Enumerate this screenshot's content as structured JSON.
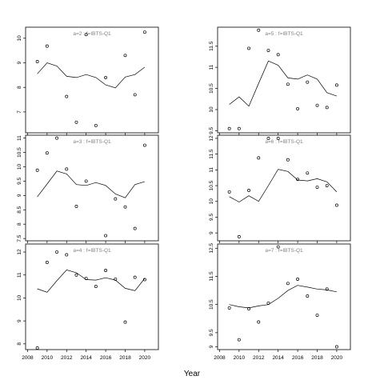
{
  "figure": {
    "xlabel": "Year"
  },
  "chart_data": [
    {
      "type": "scatter",
      "strip_label": "a=2 : f=IBTS-Q1",
      "xlabel": "Year",
      "xlim": [
        2007.8,
        2021.4
      ],
      "xticks": [
        2008,
        2010,
        2012,
        2014,
        2016,
        2018,
        2020
      ],
      "ylim": [
        6.15,
        10.45
      ],
      "yticks": [
        7,
        8,
        9,
        10
      ],
      "points": {
        "x": [
          2009,
          2010,
          2012,
          2013,
          2014,
          2015,
          2016,
          2018,
          2019,
          2020
        ],
        "y": [
          9.05,
          9.68,
          7.63,
          6.58,
          10.15,
          6.45,
          8.4,
          9.3,
          7.7,
          10.25
        ]
      },
      "fit": {
        "x": [
          2009,
          2010,
          2011,
          2012,
          2013,
          2014,
          2015,
          2016,
          2017,
          2018,
          2019,
          2020
        ],
        "y": [
          8.55,
          9.0,
          8.87,
          8.45,
          8.4,
          8.52,
          8.4,
          8.1,
          7.98,
          8.42,
          8.52,
          8.82
        ]
      }
    },
    {
      "type": "scatter",
      "strip_label": "a=3 : f=IBTS-Q1",
      "xlabel": "Year",
      "xlim": [
        2007.8,
        2021.4
      ],
      "xticks": [
        2008,
        2010,
        2012,
        2014,
        2016,
        2018,
        2020
      ],
      "ylim": [
        7.42,
        11.1
      ],
      "yticks": [
        7.5,
        8.0,
        8.5,
        9.0,
        9.5,
        10.0,
        10.5,
        11.0
      ],
      "points": {
        "x": [
          2009,
          2010,
          2011,
          2012,
          2013,
          2014,
          2016,
          2017,
          2018,
          2019,
          2020
        ],
        "y": [
          9.88,
          10.48,
          11.0,
          9.92,
          8.62,
          9.5,
          7.6,
          8.88,
          8.6,
          7.85,
          10.75
        ]
      },
      "fit": {
        "x": [
          2009,
          2010,
          2011,
          2012,
          2013,
          2014,
          2015,
          2016,
          2017,
          2018,
          2019,
          2020
        ],
        "y": [
          8.95,
          9.4,
          9.85,
          9.75,
          9.38,
          9.35,
          9.45,
          9.35,
          9.05,
          8.92,
          9.38,
          9.48
        ]
      }
    },
    {
      "type": "scatter",
      "strip_label": "a=4 : f=IBTS-Q1",
      "xlabel": "Year",
      "xlim": [
        2007.8,
        2021.4
      ],
      "xticks": [
        2008,
        2010,
        2012,
        2014,
        2016,
        2018,
        2020
      ],
      "ylim": [
        7.75,
        12.35
      ],
      "yticks": [
        8,
        9,
        10,
        11,
        12
      ],
      "points": {
        "x": [
          2009,
          2010,
          2011,
          2012,
          2013,
          2014,
          2015,
          2016,
          2017,
          2018,
          2019,
          2020
        ],
        "y": [
          7.82,
          11.55,
          12.0,
          11.88,
          11.0,
          10.85,
          10.5,
          11.2,
          10.82,
          8.95,
          10.9,
          10.8
        ]
      },
      "fit": {
        "x": [
          2009,
          2010,
          2011,
          2012,
          2013,
          2014,
          2015,
          2016,
          2017,
          2018,
          2019,
          2020
        ],
        "y": [
          10.4,
          10.25,
          10.75,
          11.22,
          11.1,
          10.8,
          10.78,
          10.88,
          10.78,
          10.42,
          10.32,
          10.85
        ]
      }
    },
    {
      "type": "scatter",
      "strip_label": "a=5 : f=IBTS-Q1",
      "xlabel": "Year",
      "xlim": [
        2007.8,
        2021.4
      ],
      "xticks": [
        2008,
        2010,
        2012,
        2014,
        2016,
        2018,
        2020
      ],
      "ylim": [
        9.45,
        11.95
      ],
      "yticks": [
        9.5,
        10.0,
        10.5,
        11.0,
        11.5
      ],
      "points": {
        "x": [
          2009,
          2010,
          2011,
          2012,
          2013,
          2014,
          2015,
          2016,
          2017,
          2018,
          2019,
          2020
        ],
        "y": [
          9.55,
          9.55,
          11.45,
          11.88,
          11.4,
          11.3,
          10.6,
          10.02,
          10.65,
          10.1,
          10.05,
          10.58
        ]
      },
      "fit": {
        "x": [
          2009,
          2010,
          2011,
          2012,
          2013,
          2014,
          2015,
          2016,
          2017,
          2018,
          2019,
          2020
        ],
        "y": [
          10.12,
          10.3,
          10.08,
          10.62,
          11.15,
          11.05,
          10.75,
          10.72,
          10.82,
          10.72,
          10.4,
          10.32
        ]
      }
    },
    {
      "type": "scatter",
      "strip_label": "a=6 : f=IBTS-Q1",
      "xlabel": "Year",
      "xlim": [
        2007.8,
        2021.4
      ],
      "xticks": [
        2008,
        2010,
        2012,
        2014,
        2016,
        2018,
        2020
      ],
      "ylim": [
        8.75,
        12.1
      ],
      "yticks": [
        9.0,
        9.5,
        10.0,
        10.5,
        11.0,
        11.5,
        12.0
      ],
      "points": {
        "x": [
          2009,
          2010,
          2011,
          2012,
          2013,
          2014,
          2015,
          2016,
          2017,
          2018,
          2019,
          2020
        ],
        "y": [
          10.3,
          8.88,
          10.35,
          11.38,
          12.0,
          12.0,
          11.32,
          10.7,
          10.9,
          10.45,
          10.5,
          9.88
        ]
      },
      "fit": {
        "x": [
          2009,
          2010,
          2011,
          2012,
          2013,
          2014,
          2015,
          2016,
          2017,
          2018,
          2019,
          2020
        ],
        "y": [
          10.15,
          9.98,
          10.18,
          10.0,
          10.5,
          11.02,
          10.95,
          10.68,
          10.65,
          10.72,
          10.62,
          10.3
        ]
      }
    },
    {
      "type": "scatter",
      "strip_label": "a=7 : f=IBTS-Q1",
      "xlabel": "Year",
      "xlim": [
        2007.8,
        2021.4
      ],
      "xticks": [
        2008,
        2010,
        2012,
        2014,
        2016,
        2018,
        2020
      ],
      "ylim": [
        8.9,
        12.65
      ],
      "yticks": [
        9.0,
        9.5,
        10.5,
        11.5,
        12.5
      ],
      "points": {
        "x": [
          2009,
          2010,
          2011,
          2012,
          2013,
          2014,
          2015,
          2016,
          2017,
          2018,
          2019,
          2020
        ],
        "y": [
          10.38,
          9.25,
          10.35,
          9.88,
          10.55,
          12.55,
          11.25,
          11.4,
          10.8,
          10.12,
          11.05,
          9.0
        ]
      },
      "fit": {
        "x": [
          2009,
          2010,
          2011,
          2012,
          2013,
          2014,
          2015,
          2016,
          2017,
          2018,
          2019,
          2020
        ],
        "y": [
          10.5,
          10.42,
          10.38,
          10.45,
          10.5,
          10.72,
          11.0,
          11.18,
          11.12,
          11.05,
          11.02,
          10.95
        ]
      }
    }
  ]
}
